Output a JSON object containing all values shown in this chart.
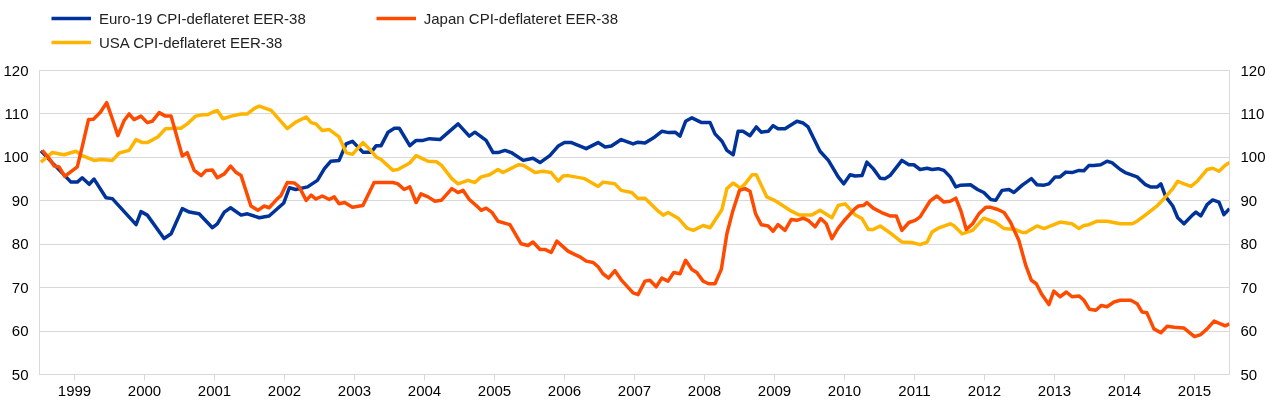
{
  "chart_data": {
    "type": "line",
    "legend": "top left",
    "grid": "y",
    "line_style": "solid",
    "xlim": [
      1999,
      2016
    ],
    "xticks": [
      {
        "value": 1999.5,
        "label": "1999"
      },
      {
        "value": 2000.5,
        "label": "2000"
      },
      {
        "value": 2001.5,
        "label": "2001"
      },
      {
        "value": 2002.5,
        "label": "2002"
      },
      {
        "value": 2003.5,
        "label": "2003"
      },
      {
        "value": 2004.5,
        "label": "2004"
      },
      {
        "value": 2005.5,
        "label": "2005"
      },
      {
        "value": 2006.5,
        "label": "2006"
      },
      {
        "value": 2007.5,
        "label": "2007"
      },
      {
        "value": 2008.5,
        "label": "2008"
      },
      {
        "value": 2009.5,
        "label": "2009"
      },
      {
        "value": 2010.5,
        "label": "2010"
      },
      {
        "value": 2011.5,
        "label": "2011"
      },
      {
        "value": 2012.5,
        "label": "2012"
      },
      {
        "value": 2013.5,
        "label": "2013"
      },
      {
        "value": 2014.5,
        "label": "2014"
      },
      {
        "value": 2015.5,
        "label": "2015"
      }
    ],
    "ylim": [
      50,
      120
    ],
    "yticks": [
      50,
      60,
      70,
      80,
      90,
      100,
      110,
      120
    ],
    "y2lim": [
      50,
      120
    ],
    "y2ticks": [
      50,
      60,
      70,
      80,
      90,
      100,
      110,
      120
    ],
    "series": [
      {
        "name": "Euro-19 CPI-deflateret EER-38",
        "color": "#003399",
        "x": [
          1999.02,
          1999.45,
          1999.54,
          1999.61,
          1999.71,
          1999.78,
          1999.95,
          2000.04,
          2000.38,
          2000.45,
          2000.54,
          2000.78,
          2000.88,
          2001.04,
          2001.14,
          2001.28,
          2001.47,
          2001.54,
          2001.64,
          2001.73,
          2001.88,
          2001.97,
          2002.14,
          2002.28,
          2002.49,
          2002.57,
          2002.66,
          2002.83,
          2002.97,
          2003.07,
          2003.16,
          2003.28,
          2003.38,
          2003.47,
          2003.62,
          2003.74,
          2003.81,
          2003.88,
          2003.98,
          2004.07,
          2004.14,
          2004.29,
          2004.38,
          2004.48,
          2004.57,
          2004.72,
          2004.98,
          2005.14,
          2005.22,
          2005.38,
          2005.48,
          2005.55,
          2005.65,
          2005.74,
          2005.91,
          2006.05,
          2006.15,
          2006.29,
          2006.41,
          2006.5,
          2006.6,
          2006.81,
          2006.98,
          2007.08,
          2007.17,
          2007.31,
          2007.48,
          2007.55,
          2007.65,
          2007.79,
          2007.89,
          2007.99,
          2008.08,
          2008.15,
          2008.23,
          2008.32,
          2008.46,
          2008.58,
          2008.65,
          2008.75,
          2008.82,
          2008.91,
          2008.98,
          2009.05,
          2009.15,
          2009.24,
          2009.31,
          2009.41,
          2009.48,
          2009.55,
          2009.65,
          2009.82,
          2009.91,
          2009.98,
          2010.15,
          2010.27,
          2010.41,
          2010.49,
          2010.58,
          2010.65,
          2010.75,
          2010.82,
          2010.91,
          2011.01,
          2011.08,
          2011.15,
          2011.32,
          2011.42,
          2011.49,
          2011.58,
          2011.68,
          2011.75,
          2011.84,
          2011.92,
          2012.01,
          2012.09,
          2012.16,
          2012.3,
          2012.4,
          2012.49,
          2012.59,
          2012.66,
          2012.75,
          2012.85,
          2012.92,
          2013.04,
          2013.17,
          2013.25,
          2013.35,
          2013.42,
          2013.51,
          2013.58,
          2013.66,
          2013.75,
          2013.85,
          2013.92,
          2013.99,
          2014.06,
          2014.16,
          2014.25,
          2014.32,
          2014.44,
          2014.51,
          2014.68,
          2014.8,
          2014.87,
          2014.97,
          2015.02,
          2015.09,
          2015.19,
          2015.26,
          2015.35,
          2015.47,
          2015.52,
          2015.59,
          2015.68,
          2015.76,
          2015.85,
          2015.92,
          2016.0
        ],
        "values": [
          101.5,
          94.3,
          94.3,
          95.3,
          93.8,
          95,
          90.7,
          90.5,
          84.5,
          87.5,
          86.7,
          81.3,
          82.4,
          88.2,
          87.4,
          87,
          83.8,
          84.7,
          87.4,
          88.4,
          86.7,
          87,
          86.1,
          86.5,
          89.5,
          93,
          92.6,
          93.2,
          94.7,
          97.4,
          99.1,
          99.3,
          103.1,
          103.7,
          101.2,
          101.2,
          102.7,
          102.7,
          105.8,
          106.7,
          106.7,
          102.7,
          103.9,
          103.9,
          104.3,
          104.1,
          107.7,
          104.9,
          105.8,
          103.9,
          101.1,
          101.1,
          101.6,
          101.1,
          99.3,
          99.8,
          98.8,
          100.4,
          102.6,
          103.4,
          103.4,
          102,
          103.4,
          102.4,
          102.6,
          104.1,
          103.1,
          103.5,
          103.3,
          104.7,
          106,
          105.7,
          105.8,
          104.9,
          108.3,
          109.1,
          108,
          108,
          105.4,
          103.7,
          101.6,
          100.6,
          106,
          106,
          105,
          107,
          105.8,
          106,
          107.3,
          106.6,
          106.6,
          108.3,
          107.9,
          107,
          101.4,
          99.3,
          95.5,
          93.9,
          96,
          95.7,
          95.8,
          98.9,
          97.4,
          95.2,
          95.1,
          95.8,
          99.3,
          98.3,
          98.3,
          97.2,
          97.5,
          97.2,
          97.4,
          97,
          95.5,
          93.2,
          93.6,
          93.7,
          92.6,
          91.9,
          90.3,
          90.1,
          92.4,
          92.6,
          91.9,
          93.6,
          95.1,
          93.7,
          93.6,
          93.9,
          95.5,
          95.5,
          96.6,
          96.5,
          97,
          96.9,
          98.1,
          98.1,
          98.3,
          99.1,
          98.8,
          97.2,
          96.5,
          95.5,
          93.7,
          93.2,
          93.2,
          93.9,
          90.9,
          88.8,
          86.1,
          84.7,
          86.7,
          87.4,
          86.5,
          89.1,
          90.2,
          89.7,
          86.8,
          88.2
        ]
      },
      {
        "name": "USA CPI-deflateret EER-38",
        "color": "#ffb400",
        "x": [
          1999.02,
          1999.09,
          1999.18,
          1999.35,
          1999.52,
          1999.61,
          1999.78,
          1999.88,
          2000.04,
          2000.14,
          2000.28,
          2000.38,
          2000.47,
          2000.54,
          2000.69,
          2000.8,
          2000.92,
          2001.02,
          2001.11,
          2001.23,
          2001.33,
          2001.4,
          2001.5,
          2001.54,
          2001.62,
          2001.74,
          2001.88,
          2001.97,
          2002.07,
          2002.14,
          2002.31,
          2002.54,
          2002.66,
          2002.81,
          2002.88,
          2002.95,
          2003.04,
          2003.14,
          2003.28,
          2003.38,
          2003.47,
          2003.62,
          2003.71,
          2003.81,
          2003.88,
          2004.05,
          2004.12,
          2004.29,
          2004.38,
          2004.55,
          2004.67,
          2004.74,
          2004.89,
          2004.98,
          2005.12,
          2005.22,
          2005.31,
          2005.43,
          2005.55,
          2005.62,
          2005.84,
          2005.91,
          2006.08,
          2006.19,
          2006.31,
          2006.41,
          2006.48,
          2006.55,
          2006.79,
          2006.98,
          2007.05,
          2007.22,
          2007.31,
          2007.46,
          2007.55,
          2007.65,
          2007.84,
          2007.91,
          2007.98,
          2008.13,
          2008.25,
          2008.34,
          2008.48,
          2008.58,
          2008.75,
          2008.82,
          2008.91,
          2009.01,
          2009.08,
          2009.18,
          2009.24,
          2009.39,
          2009.5,
          2009.6,
          2009.74,
          2009.86,
          2010.03,
          2010.15,
          2010.32,
          2010.41,
          2010.51,
          2010.65,
          2010.75,
          2010.84,
          2010.91,
          2011.01,
          2011.17,
          2011.32,
          2011.46,
          2011.58,
          2011.68,
          2011.75,
          2011.84,
          2012.01,
          2012.06,
          2012.18,
          2012.33,
          2012.49,
          2012.66,
          2012.78,
          2012.94,
          2013.04,
          2013.09,
          2013.25,
          2013.35,
          2013.58,
          2013.75,
          2013.85,
          2013.92,
          2013.99,
          2014.11,
          2014.25,
          2014.44,
          2014.61,
          2014.68,
          2014.78,
          2014.87,
          2014.97,
          2015.07,
          2015.19,
          2015.26,
          2015.35,
          2015.45,
          2015.54,
          2015.68,
          2015.76,
          2015.85,
          2015.94,
          2016.0
        ],
        "values": [
          98.9,
          99.8,
          101.1,
          100.6,
          101.4,
          100.4,
          99.3,
          99.5,
          99.3,
          101,
          101.6,
          104.1,
          103.4,
          103.4,
          104.7,
          106.6,
          106.7,
          106.7,
          107.7,
          109.5,
          109.8,
          109.8,
          110.6,
          110.8,
          108.9,
          109.5,
          110,
          110,
          111.3,
          111.8,
          110.8,
          106.6,
          108.1,
          109.3,
          108,
          107.7,
          106.2,
          106.4,
          104.7,
          101.1,
          100.7,
          103.4,
          102,
          100.1,
          99.5,
          97,
          97.2,
          98.7,
          100.4,
          99.1,
          99,
          98.2,
          95.1,
          93.9,
          94.7,
          94.2,
          95.5,
          96,
          97.2,
          96.5,
          98.3,
          98.2,
          96.5,
          96.8,
          96.5,
          94.5,
          95.7,
          95.8,
          95.1,
          93.3,
          94.3,
          93.9,
          92.4,
          91.9,
          90.5,
          90.6,
          87.6,
          86.7,
          87.3,
          85.9,
          83.7,
          83.2,
          84.3,
          83.8,
          88,
          92.8,
          94.1,
          92.9,
          93.9,
          96,
          96,
          90.9,
          90.1,
          89.1,
          87.6,
          86.7,
          86.7,
          87.8,
          86.1,
          88.9,
          89.3,
          86.8,
          85.9,
          83.4,
          83.4,
          84.2,
          82.4,
          80.5,
          80.4,
          79.9,
          80.5,
          82.8,
          83.7,
          84.7,
          84.3,
          82.4,
          83.2,
          86,
          85,
          83.6,
          83.4,
          82.7,
          82.7,
          84.2,
          83.6,
          85.1,
          84.7,
          83.6,
          84.3,
          84.5,
          85.3,
          85.3,
          84.7,
          84.7,
          85.3,
          86.5,
          87.6,
          88.9,
          90.6,
          92.8,
          94.5,
          93.9,
          93.3,
          94.5,
          97.2,
          97.5,
          96.8,
          98.2,
          98.8
        ]
      },
      {
        "name": "Japan CPI-deflateret EER-38",
        "color": "#ff4b00",
        "x": [
          1999.04,
          1999.14,
          1999.21,
          1999.28,
          1999.36,
          1999.54,
          1999.61,
          1999.7,
          1999.77,
          1999.87,
          1999.96,
          2000.04,
          2000.12,
          2000.21,
          2000.28,
          2000.35,
          2000.45,
          2000.54,
          2000.61,
          2000.71,
          2000.8,
          2000.88,
          2001.04,
          2001.11,
          2001.21,
          2001.31,
          2001.38,
          2001.47,
          2001.54,
          2001.64,
          2001.73,
          2001.81,
          2001.88,
          2002.02,
          2002.12,
          2002.21,
          2002.28,
          2002.4,
          2002.45,
          2002.54,
          2002.64,
          2002.71,
          2002.81,
          2002.88,
          2002.95,
          2003.04,
          2003.14,
          2003.21,
          2003.28,
          2003.36,
          2003.47,
          2003.62,
          2003.78,
          2004.05,
          2004.12,
          2004.21,
          2004.29,
          2004.38,
          2004.45,
          2004.55,
          2004.65,
          2004.74,
          2004.89,
          2004.98,
          2005.05,
          2005.14,
          2005.24,
          2005.31,
          2005.38,
          2005.46,
          2005.55,
          2005.72,
          2005.88,
          2005.98,
          2006.05,
          2006.15,
          2006.22,
          2006.31,
          2006.39,
          2006.55,
          2006.65,
          2006.72,
          2006.81,
          2006.91,
          2006.98,
          2007.05,
          2007.13,
          2007.22,
          2007.31,
          2007.48,
          2007.55,
          2007.65,
          2007.72,
          2007.81,
          2007.89,
          2007.98,
          2008.06,
          2008.15,
          2008.23,
          2008.32,
          2008.39,
          2008.48,
          2008.56,
          2008.65,
          2008.74,
          2008.82,
          2008.9,
          2009.0,
          2009.08,
          2009.15,
          2009.23,
          2009.31,
          2009.41,
          2009.48,
          2009.55,
          2009.65,
          2009.74,
          2009.82,
          2009.91,
          2009.98,
          2010.08,
          2010.16,
          2010.24,
          2010.32,
          2010.41,
          2010.51,
          2010.65,
          2010.7,
          2010.77,
          2010.82,
          2010.91,
          2011.03,
          2011.15,
          2011.24,
          2011.32,
          2011.42,
          2011.51,
          2011.58,
          2011.72,
          2011.82,
          2011.92,
          2012.01,
          2012.09,
          2012.16,
          2012.24,
          2012.33,
          2012.42,
          2012.52,
          2012.59,
          2012.69,
          2012.78,
          2012.87,
          2012.99,
          2013.09,
          2013.17,
          2013.24,
          2013.32,
          2013.42,
          2013.49,
          2013.58,
          2013.67,
          2013.75,
          2013.85,
          2013.92,
          2014.0,
          2014.09,
          2014.17,
          2014.25,
          2014.35,
          2014.44,
          2014.59,
          2014.68,
          2014.75,
          2014.82,
          2014.92,
          2015.02,
          2015.11,
          2015.21,
          2015.35,
          2015.5,
          2015.59,
          2015.68,
          2015.78,
          2015.94,
          2016.0
        ],
        "values": [
          101.6,
          99.7,
          98,
          97.8,
          95.6,
          97.8,
          102.4,
          108.7,
          108.8,
          110.4,
          112.6,
          108.9,
          105,
          108.5,
          110,
          108.7,
          109.5,
          108,
          108.3,
          110.3,
          109.5,
          109.5,
          100.3,
          101.1,
          97,
          95.8,
          97,
          97.1,
          95.3,
          96.2,
          98,
          96.5,
          95.8,
          88.8,
          87.8,
          88.8,
          88.4,
          90.5,
          91.2,
          94.2,
          94.1,
          93.2,
          90.1,
          91.3,
          90.4,
          91.1,
          90.3,
          90.9,
          89.3,
          89.6,
          88.5,
          88.9,
          94.2,
          94.2,
          93.9,
          92.6,
          93.2,
          89.6,
          91.6,
          90.9,
          89.9,
          90.1,
          92.8,
          91.9,
          92.4,
          90.3,
          88.9,
          87.8,
          88.3,
          87.4,
          85.3,
          84.5,
          80.1,
          79.7,
          80.5,
          78.8,
          78.8,
          78.1,
          80.7,
          78.4,
          77.6,
          77.1,
          76.1,
          75.8,
          74.8,
          73.2,
          72.2,
          73.9,
          71.8,
          68.8,
          68.4,
          71.5,
          71.7,
          70.2,
          72.2,
          71.5,
          73.5,
          73.2,
          76.3,
          74.2,
          73.5,
          71.5,
          70.9,
          70.9,
          74.2,
          82.4,
          87.4,
          92.4,
          92.8,
          92.2,
          87,
          84.5,
          84.2,
          83,
          84.5,
          83.2,
          85.7,
          85.5,
          86,
          85.5,
          84,
          85.9,
          84.7,
          81.3,
          83.7,
          85.7,
          88.2,
          88.8,
          88.9,
          89.6,
          88.3,
          87.3,
          86.5,
          86.5,
          83.2,
          85,
          85.5,
          86.3,
          89.9,
          91.1,
          89.7,
          89.9,
          90.6,
          87.8,
          83.4,
          84.7,
          87,
          88.5,
          88.5,
          88,
          87.3,
          85.1,
          80.9,
          75.1,
          71.7,
          70.9,
          68.4,
          66.1,
          69.2,
          67.9,
          69,
          67.9,
          68.1,
          67.1,
          65,
          64.8,
          65.9,
          65.6,
          66.7,
          67.1,
          67.1,
          66.3,
          64.4,
          64.2,
          60.5,
          59.6,
          61.1,
          60.9,
          60.7,
          58.7,
          59.2,
          60.5,
          62.3,
          61.2,
          61.7
        ]
      }
    ]
  }
}
